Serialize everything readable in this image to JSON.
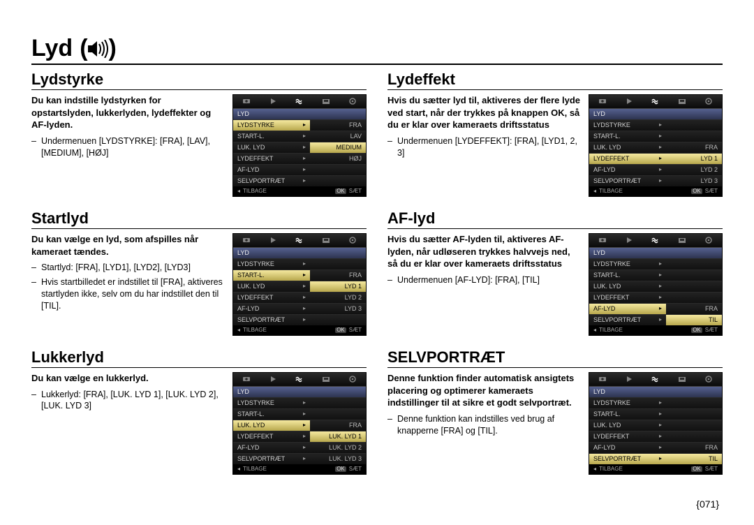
{
  "page_title": "Lyd",
  "page_number": "{071}",
  "menu_footer": {
    "back": "TILBAGE",
    "ok": "OK",
    "set": "SÆT"
  },
  "colors": {
    "highlight_bg": "#e6d87a",
    "cat_bg": "#3c4572",
    "widget_bg": "#000000"
  },
  "sections": {
    "lydstyrke": {
      "heading": "Lydstyrke",
      "lead": "Du kan indstille lydstyrken for opstartslyden, lukkerlyden, lydeffekter og AF-lyden.",
      "bullets": [
        "Undermenuen [LYDSTYRKE]: [FRA], [LAV], [MEDIUM], [HØJ]"
      ]
    },
    "startlyd": {
      "heading": "Startlyd",
      "lead": "Du kan vælge en lyd, som afspilles når kameraet tændes.",
      "bullets": [
        "Startlyd: [FRA], [LYD1], [LYD2], [LYD3]",
        "Hvis startbilledet er indstillet til [FRA], aktiveres startlyden ikke, selv om du har indstillet den til [TIL]."
      ]
    },
    "lukkerlyd": {
      "heading": "Lukkerlyd",
      "lead": "Du kan vælge en lukkerlyd.",
      "bullets": [
        "Lukkerlyd: [FRA], [LUK. LYD 1], [LUK. LYD 2], [LUK. LYD 3]"
      ]
    },
    "lydeffekt": {
      "heading": "Lydeffekt",
      "lead": "Hvis du sætter lyd til, aktiveres der flere lyde ved start, når der trykkes på knappen OK, så du er klar over kameraets driftsstatus",
      "bullets": [
        "Undermenuen [LYDEFFEKT]: [FRA], [LYD1, 2, 3]"
      ]
    },
    "aflyd": {
      "heading": "AF-lyd",
      "lead": "Hvis du sætter AF-lyden til, aktiveres AF-lyden, når udløseren trykkes halvvejs ned, så du er klar over kameraets driftsstatus",
      "bullets": [
        "Undermenuen [AF-LYD]: [FRA], [TIL]"
      ]
    },
    "selvportraet": {
      "heading": "SELVPORTRÆT",
      "lead": "Denne funktion ﬁnder automatisk ansigtets placering og optimerer kameraets indstillinger til at sikre et godt selvportræt.",
      "bullets": [
        "Denne funktion kan indstilles ved brug af knapperne [FRA] og [TIL]."
      ]
    }
  },
  "menus": {
    "lydstyrke": {
      "category": "LYD",
      "rows": [
        {
          "label": "LYDSTYRKE",
          "value": "FRA",
          "hlLabel": true
        },
        {
          "label": "START-L.",
          "value": "LAV"
        },
        {
          "label": "LUK. LYD",
          "value": "MEDIUM",
          "hlValue": true
        },
        {
          "label": "LYDEFFEKT",
          "value": "HØJ"
        },
        {
          "label": "AF-LYD",
          "value": ""
        },
        {
          "label": "SELVPORTRÆT",
          "value": ""
        }
      ]
    },
    "startlyd": {
      "category": "LYD",
      "rows": [
        {
          "label": "LYDSTYRKE",
          "value": ""
        },
        {
          "label": "START-L.",
          "value": "FRA",
          "hlLabel": true
        },
        {
          "label": "LUK. LYD",
          "value": "LYD 1",
          "hlValue": true
        },
        {
          "label": "LYDEFFEKT",
          "value": "LYD 2"
        },
        {
          "label": "AF-LYD",
          "value": "LYD 3"
        },
        {
          "label": "SELVPORTRÆT",
          "value": ""
        }
      ]
    },
    "lukkerlyd": {
      "category": "LYD",
      "rows": [
        {
          "label": "LYDSTYRKE",
          "value": ""
        },
        {
          "label": "START-L.",
          "value": ""
        },
        {
          "label": "LUK. LYD",
          "value": "FRA",
          "hlLabel": true
        },
        {
          "label": "LYDEFFEKT",
          "value": "LUK. LYD 1",
          "hlValue": true
        },
        {
          "label": "AF-LYD",
          "value": "LUK. LYD 2"
        },
        {
          "label": "SELVPORTRÆT",
          "value": "LUK. LYD 3"
        }
      ]
    },
    "lydeffekt": {
      "category": "LYD",
      "rows": [
        {
          "label": "LYDSTYRKE",
          "value": ""
        },
        {
          "label": "START-L.",
          "value": ""
        },
        {
          "label": "LUK. LYD",
          "value": "FRA"
        },
        {
          "label": "LYDEFFEKT",
          "value": "LYD 1",
          "hlLabel": true,
          "hlValue": true
        },
        {
          "label": "AF-LYD",
          "value": "LYD 2"
        },
        {
          "label": "SELVPORTRÆT",
          "value": "LYD 3"
        }
      ]
    },
    "aflyd": {
      "category": "LYD",
      "rows": [
        {
          "label": "LYDSTYRKE",
          "value": ""
        },
        {
          "label": "START-L.",
          "value": ""
        },
        {
          "label": "LUK. LYD",
          "value": ""
        },
        {
          "label": "LYDEFFEKT",
          "value": ""
        },
        {
          "label": "AF-LYD",
          "value": "FRA",
          "hlLabel": true
        },
        {
          "label": "SELVPORTRÆT",
          "value": "TIL",
          "hlValue": true
        }
      ]
    },
    "selvportraet": {
      "category": "LYD",
      "rows": [
        {
          "label": "LYDSTYRKE",
          "value": ""
        },
        {
          "label": "START-L.",
          "value": ""
        },
        {
          "label": "LUK. LYD",
          "value": ""
        },
        {
          "label": "LYDEFFEKT",
          "value": ""
        },
        {
          "label": "AF-LYD",
          "value": "FRA"
        },
        {
          "label": "SELVPORTRÆT",
          "value": "TIL",
          "hlLabel": true,
          "hlValue": true
        }
      ]
    }
  }
}
